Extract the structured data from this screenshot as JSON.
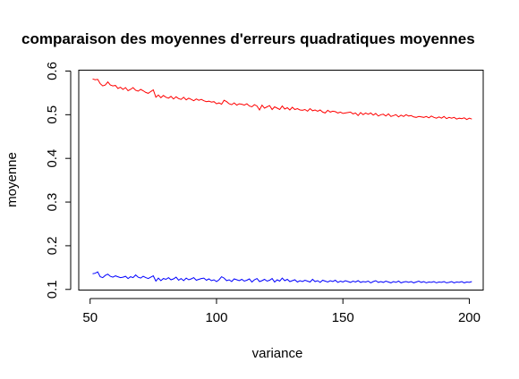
{
  "chart_data": {
    "type": "line",
    "title": "comparaison des moyennes d'erreurs quadratiques moyennes",
    "xlabel": "variance",
    "ylabel": "moyenne",
    "xlim": [
      45.5,
      205.5
    ],
    "ylim": [
      0.0985,
      0.602
    ],
    "xticks": [
      50,
      100,
      150,
      200
    ],
    "yticks": [
      0.1,
      0.2,
      0.3,
      0.4,
      0.5,
      0.6
    ],
    "xtick_labels": [
      "50",
      "100",
      "150",
      "200"
    ],
    "ytick_labels": [
      "0.1",
      "0.2",
      "0.3",
      "0.4",
      "0.5",
      "0.6"
    ],
    "grid": false,
    "legend": "none",
    "x": [
      51,
      52,
      53,
      54,
      55,
      56,
      57,
      58,
      59,
      60,
      61,
      62,
      63,
      64,
      65,
      66,
      67,
      68,
      69,
      70,
      71,
      72,
      73,
      74,
      75,
      76,
      77,
      78,
      79,
      80,
      81,
      82,
      83,
      84,
      85,
      86,
      87,
      88,
      89,
      90,
      91,
      92,
      93,
      94,
      95,
      96,
      97,
      98,
      99,
      100,
      101,
      102,
      103,
      104,
      105,
      106,
      107,
      108,
      109,
      110,
      111,
      112,
      113,
      114,
      115,
      116,
      117,
      118,
      119,
      120,
      121,
      122,
      123,
      124,
      125,
      126,
      127,
      128,
      129,
      130,
      131,
      132,
      133,
      134,
      135,
      136,
      137,
      138,
      139,
      140,
      141,
      142,
      143,
      144,
      145,
      146,
      147,
      148,
      149,
      150,
      151,
      152,
      153,
      154,
      155,
      156,
      157,
      158,
      159,
      160,
      161,
      162,
      163,
      164,
      165,
      166,
      167,
      168,
      169,
      170,
      171,
      172,
      173,
      174,
      175,
      176,
      177,
      178,
      179,
      180,
      181,
      182,
      183,
      184,
      185,
      186,
      187,
      188,
      189,
      190,
      191,
      192,
      193,
      194,
      195,
      196,
      197,
      198,
      199,
      200,
      201
    ],
    "series": [
      {
        "color": "#ff0000",
        "values": [
          0.582,
          0.58,
          0.581,
          0.571,
          0.566,
          0.568,
          0.575,
          0.568,
          0.566,
          0.567,
          0.56,
          0.563,
          0.558,
          0.562,
          0.555,
          0.558,
          0.562,
          0.556,
          0.554,
          0.558,
          0.555,
          0.551,
          0.549,
          0.553,
          0.557,
          0.54,
          0.545,
          0.539,
          0.544,
          0.54,
          0.538,
          0.542,
          0.536,
          0.541,
          0.537,
          0.535,
          0.54,
          0.534,
          0.538,
          0.535,
          0.532,
          0.536,
          0.533,
          0.535,
          0.532,
          0.53,
          0.531,
          0.529,
          0.53,
          0.525,
          0.527,
          0.524,
          0.533,
          0.53,
          0.525,
          0.523,
          0.527,
          0.522,
          0.525,
          0.524,
          0.522,
          0.525,
          0.52,
          0.518,
          0.523,
          0.52,
          0.511,
          0.522,
          0.515,
          0.518,
          0.521,
          0.512,
          0.518,
          0.515,
          0.512,
          0.52,
          0.513,
          0.516,
          0.511,
          0.517,
          0.512,
          0.514,
          0.511,
          0.51,
          0.512,
          0.508,
          0.514,
          0.509,
          0.511,
          0.508,
          0.511,
          0.506,
          0.504,
          0.51,
          0.506,
          0.508,
          0.507,
          0.504,
          0.506,
          0.503,
          0.504,
          0.505,
          0.506,
          0.502,
          0.504,
          0.498,
          0.505,
          0.5,
          0.504,
          0.501,
          0.504,
          0.499,
          0.503,
          0.497,
          0.5,
          0.501,
          0.497,
          0.502,
          0.496,
          0.498,
          0.5,
          0.495,
          0.499,
          0.496,
          0.5,
          0.497,
          0.498,
          0.495,
          0.494,
          0.496,
          0.495,
          0.494,
          0.496,
          0.493,
          0.497,
          0.494,
          0.492,
          0.495,
          0.492,
          0.496,
          0.491,
          0.494,
          0.492,
          0.494,
          0.49,
          0.492,
          0.491,
          0.493,
          0.489,
          0.492,
          0.49
        ]
      },
      {
        "color": "#0000ff",
        "values": [
          0.136,
          0.137,
          0.14,
          0.129,
          0.127,
          0.132,
          0.135,
          0.13,
          0.128,
          0.131,
          0.129,
          0.127,
          0.128,
          0.13,
          0.125,
          0.129,
          0.127,
          0.133,
          0.128,
          0.126,
          0.13,
          0.127,
          0.125,
          0.128,
          0.131,
          0.119,
          0.126,
          0.12,
          0.125,
          0.123,
          0.127,
          0.122,
          0.124,
          0.128,
          0.121,
          0.125,
          0.12,
          0.126,
          0.122,
          0.124,
          0.127,
          0.121,
          0.123,
          0.125,
          0.126,
          0.121,
          0.124,
          0.12,
          0.122,
          0.118,
          0.122,
          0.129,
          0.126,
          0.12,
          0.122,
          0.118,
          0.124,
          0.122,
          0.12,
          0.123,
          0.119,
          0.121,
          0.124,
          0.117,
          0.122,
          0.125,
          0.118,
          0.12,
          0.123,
          0.119,
          0.121,
          0.125,
          0.117,
          0.122,
          0.119,
          0.126,
          0.12,
          0.123,
          0.118,
          0.12,
          0.122,
          0.117,
          0.12,
          0.118,
          0.121,
          0.119,
          0.117,
          0.123,
          0.118,
          0.12,
          0.116,
          0.121,
          0.119,
          0.117,
          0.12,
          0.118,
          0.121,
          0.116,
          0.119,
          0.117,
          0.12,
          0.118,
          0.116,
          0.119,
          0.117,
          0.12,
          0.116,
          0.118,
          0.117,
          0.119,
          0.115,
          0.118,
          0.12,
          0.116,
          0.118,
          0.116,
          0.119,
          0.117,
          0.115,
          0.118,
          0.116,
          0.119,
          0.115,
          0.117,
          0.118,
          0.116,
          0.118,
          0.115,
          0.117,
          0.119,
          0.116,
          0.118,
          0.115,
          0.117,
          0.116,
          0.118,
          0.115,
          0.117,
          0.116,
          0.118,
          0.115,
          0.116,
          0.118,
          0.115,
          0.117,
          0.116,
          0.118,
          0.115,
          0.117,
          0.116,
          0.118
        ]
      }
    ]
  }
}
